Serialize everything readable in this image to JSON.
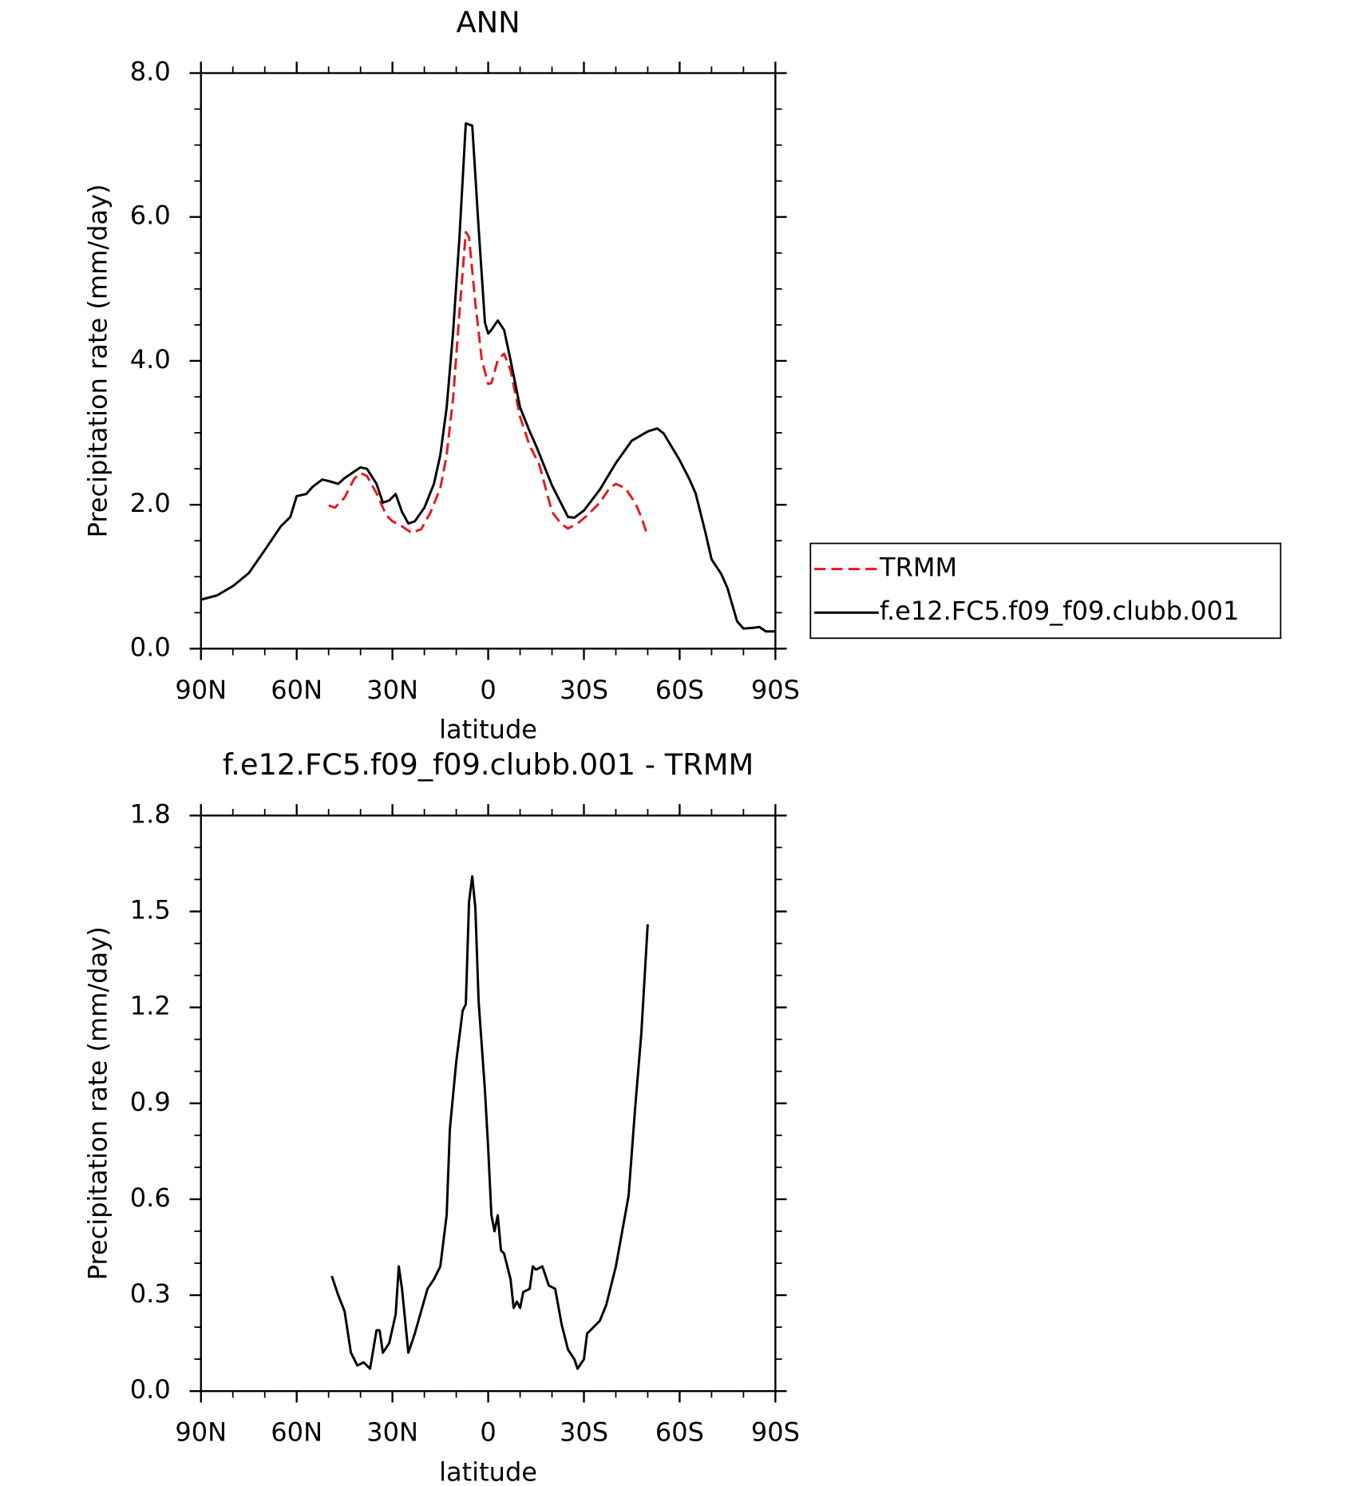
{
  "chart_data": [
    {
      "type": "line",
      "title": "ANN",
      "x_label": "latitude",
      "y_label": "Precipitation rate (mm/day)",
      "xlim": [
        90,
        -90
      ],
      "xticks": [
        {
          "value": 90,
          "label": "90N"
        },
        {
          "value": 60,
          "label": "60N"
        },
        {
          "value": 30,
          "label": "30N"
        },
        0,
        {
          "value": -30,
          "label": "30S"
        },
        {
          "value": -60,
          "label": "60S"
        },
        {
          "value": -90,
          "label": "90S"
        }
      ],
      "ylim": [
        0,
        8
      ],
      "yticks": [
        {
          "value": 0,
          "label": "0.0"
        },
        {
          "value": 2,
          "label": "2.0"
        },
        {
          "value": 4,
          "label": "4.0"
        },
        {
          "value": 6,
          "label": "6.0"
        },
        {
          "value": 8,
          "label": "8.0"
        }
      ],
      "legend": "outside-right",
      "series": [
        {
          "name": "TRMM",
          "color": "#e41a1c",
          "dash": true,
          "x": [
            50,
            48,
            45,
            42,
            40,
            38,
            35,
            32,
            30,
            27,
            24,
            21,
            18,
            15,
            13,
            11,
            9,
            7,
            6,
            4,
            2,
            0,
            -1,
            -3,
            -5,
            -7,
            -10,
            -13,
            -16,
            -20,
            -23,
            -25,
            -28,
            -31,
            -35,
            -38,
            -40,
            -43,
            -46,
            -48,
            -50
          ],
          "values": [
            1.99,
            1.96,
            2.1,
            2.36,
            2.44,
            2.4,
            2.16,
            1.86,
            1.77,
            1.7,
            1.61,
            1.66,
            1.9,
            2.23,
            2.69,
            3.48,
            4.67,
            5.79,
            5.72,
            4.8,
            4.01,
            3.68,
            3.69,
            4.01,
            4.1,
            3.87,
            3.22,
            2.82,
            2.56,
            1.9,
            1.73,
            1.67,
            1.74,
            1.85,
            2.03,
            2.23,
            2.29,
            2.23,
            2.03,
            1.83,
            1.56
          ]
        },
        {
          "name": "f.e12.FC5.f09_f09.clubb.001",
          "color": "#000000",
          "dash": false,
          "x": [
            90,
            85,
            80,
            75,
            70,
            65,
            62,
            60,
            57,
            55,
            52,
            50,
            47,
            45,
            42,
            40,
            38,
            35,
            33,
            31,
            29,
            27,
            25,
            23,
            20,
            17,
            15,
            13,
            11,
            9,
            7,
            5,
            3,
            1,
            0,
            -1,
            -3,
            -5,
            -7,
            -10,
            -13,
            -15,
            -20,
            -25,
            -27,
            -30,
            -35,
            -40,
            -45,
            -50,
            -53,
            -55,
            -60,
            -63,
            -65,
            -68,
            -70,
            -73,
            -75,
            -78,
            -80,
            -83,
            -85,
            -87,
            -90
          ],
          "values": [
            0.68,
            0.74,
            0.87,
            1.05,
            1.37,
            1.7,
            1.83,
            2.12,
            2.15,
            2.25,
            2.35,
            2.33,
            2.29,
            2.37,
            2.46,
            2.52,
            2.5,
            2.29,
            2.03,
            2.06,
            2.15,
            1.9,
            1.74,
            1.77,
            1.96,
            2.29,
            2.69,
            3.35,
            4.4,
            5.72,
            7.3,
            7.27,
            5.85,
            4.53,
            4.38,
            4.43,
            4.56,
            4.43,
            4.01,
            3.35,
            3.02,
            2.82,
            2.27,
            1.83,
            1.82,
            1.92,
            2.21,
            2.58,
            2.89,
            3.02,
            3.06,
            2.99,
            2.62,
            2.36,
            2.16,
            1.63,
            1.24,
            1.04,
            0.84,
            0.38,
            0.28,
            0.29,
            0.3,
            0.24,
            0.24
          ]
        }
      ]
    },
    {
      "type": "line",
      "title": "f.e12.FC5.f09_f09.clubb.001 - TRMM",
      "x_label": "latitude",
      "y_label": "Precipitation rate (mm/day)",
      "xlim": [
        90,
        -90
      ],
      "xticks": [
        {
          "value": 90,
          "label": "90N"
        },
        {
          "value": 60,
          "label": "60N"
        },
        {
          "value": 30,
          "label": "30N"
        },
        0,
        {
          "value": -30,
          "label": "30S"
        },
        {
          "value": -60,
          "label": "60S"
        },
        {
          "value": -90,
          "label": "90S"
        }
      ],
      "ylim": [
        0,
        1.8
      ],
      "yticks": [
        {
          "value": 0,
          "label": "0.0"
        },
        0.3,
        0.6,
        0.9,
        1.2,
        1.5,
        1.8
      ],
      "series": [
        {
          "color": "#000000",
          "dash": false,
          "x": [
            49,
            47,
            45,
            43,
            41,
            39,
            37,
            35,
            34,
            33,
            31,
            29,
            28,
            27,
            25,
            23,
            21,
            19,
            17,
            15,
            13,
            12,
            10,
            8,
            7,
            6,
            5,
            4,
            3,
            1,
            0,
            -1,
            -2,
            -3,
            -4,
            -5,
            -7,
            -8,
            -9,
            -10,
            -11,
            -13,
            -14,
            -15,
            -17,
            -19,
            -21,
            -23,
            -25,
            -27,
            -28,
            -30,
            -31,
            -33,
            -35,
            -37,
            -40,
            -42,
            -44,
            -46,
            -48,
            -50
          ],
          "values": [
            0.36,
            0.3,
            0.25,
            0.12,
            0.08,
            0.09,
            0.07,
            0.19,
            0.19,
            0.12,
            0.15,
            0.24,
            0.39,
            0.32,
            0.12,
            0.18,
            0.25,
            0.32,
            0.35,
            0.39,
            0.55,
            0.82,
            1.03,
            1.19,
            1.21,
            1.53,
            1.61,
            1.51,
            1.22,
            0.94,
            0.76,
            0.55,
            0.5,
            0.55,
            0.44,
            0.43,
            0.35,
            0.26,
            0.28,
            0.26,
            0.31,
            0.32,
            0.39,
            0.38,
            0.39,
            0.33,
            0.32,
            0.21,
            0.13,
            0.1,
            0.07,
            0.1,
            0.18,
            0.2,
            0.22,
            0.27,
            0.39,
            0.5,
            0.61,
            0.88,
            1.12,
            1.46
          ]
        }
      ]
    }
  ]
}
